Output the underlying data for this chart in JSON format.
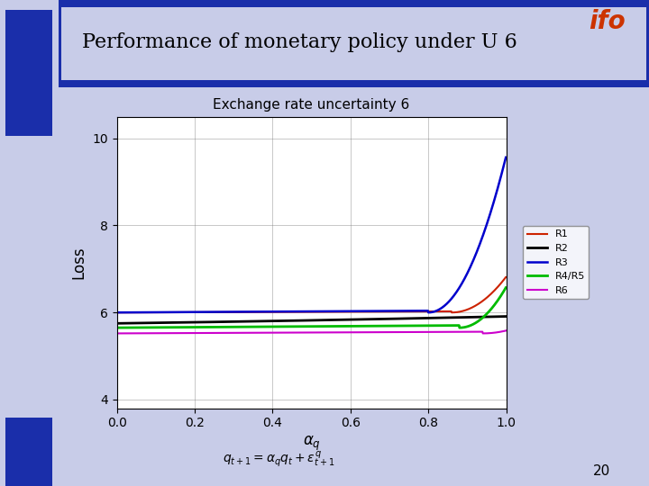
{
  "title": "Performance of monetary policy under U 6",
  "plot_title": "Exchange rate uncertainty 6",
  "xlabel": "$\\alpha_q$",
  "ylabel": "Loss",
  "xlim": [
    0,
    1.0
  ],
  "ylim": [
    3.8,
    10.5
  ],
  "yticks": [
    4,
    6,
    8,
    10
  ],
  "xticks": [
    0,
    0.2,
    0.4,
    0.6,
    0.8,
    1
  ],
  "slide_bg": "#c8cce8",
  "formula": "$q_{t+1} = \\alpha_q q_t + \\varepsilon^q_{t+1}$",
  "page_number": "20",
  "legend_labels": [
    "R1",
    "R2",
    "R3",
    "R4/R5",
    "R6"
  ],
  "line_colors": [
    "#cc2200",
    "#000000",
    "#0000cc",
    "#00bb00",
    "#cc00cc"
  ],
  "line_widths": [
    1.5,
    2.0,
    1.8,
    2.0,
    1.5
  ]
}
